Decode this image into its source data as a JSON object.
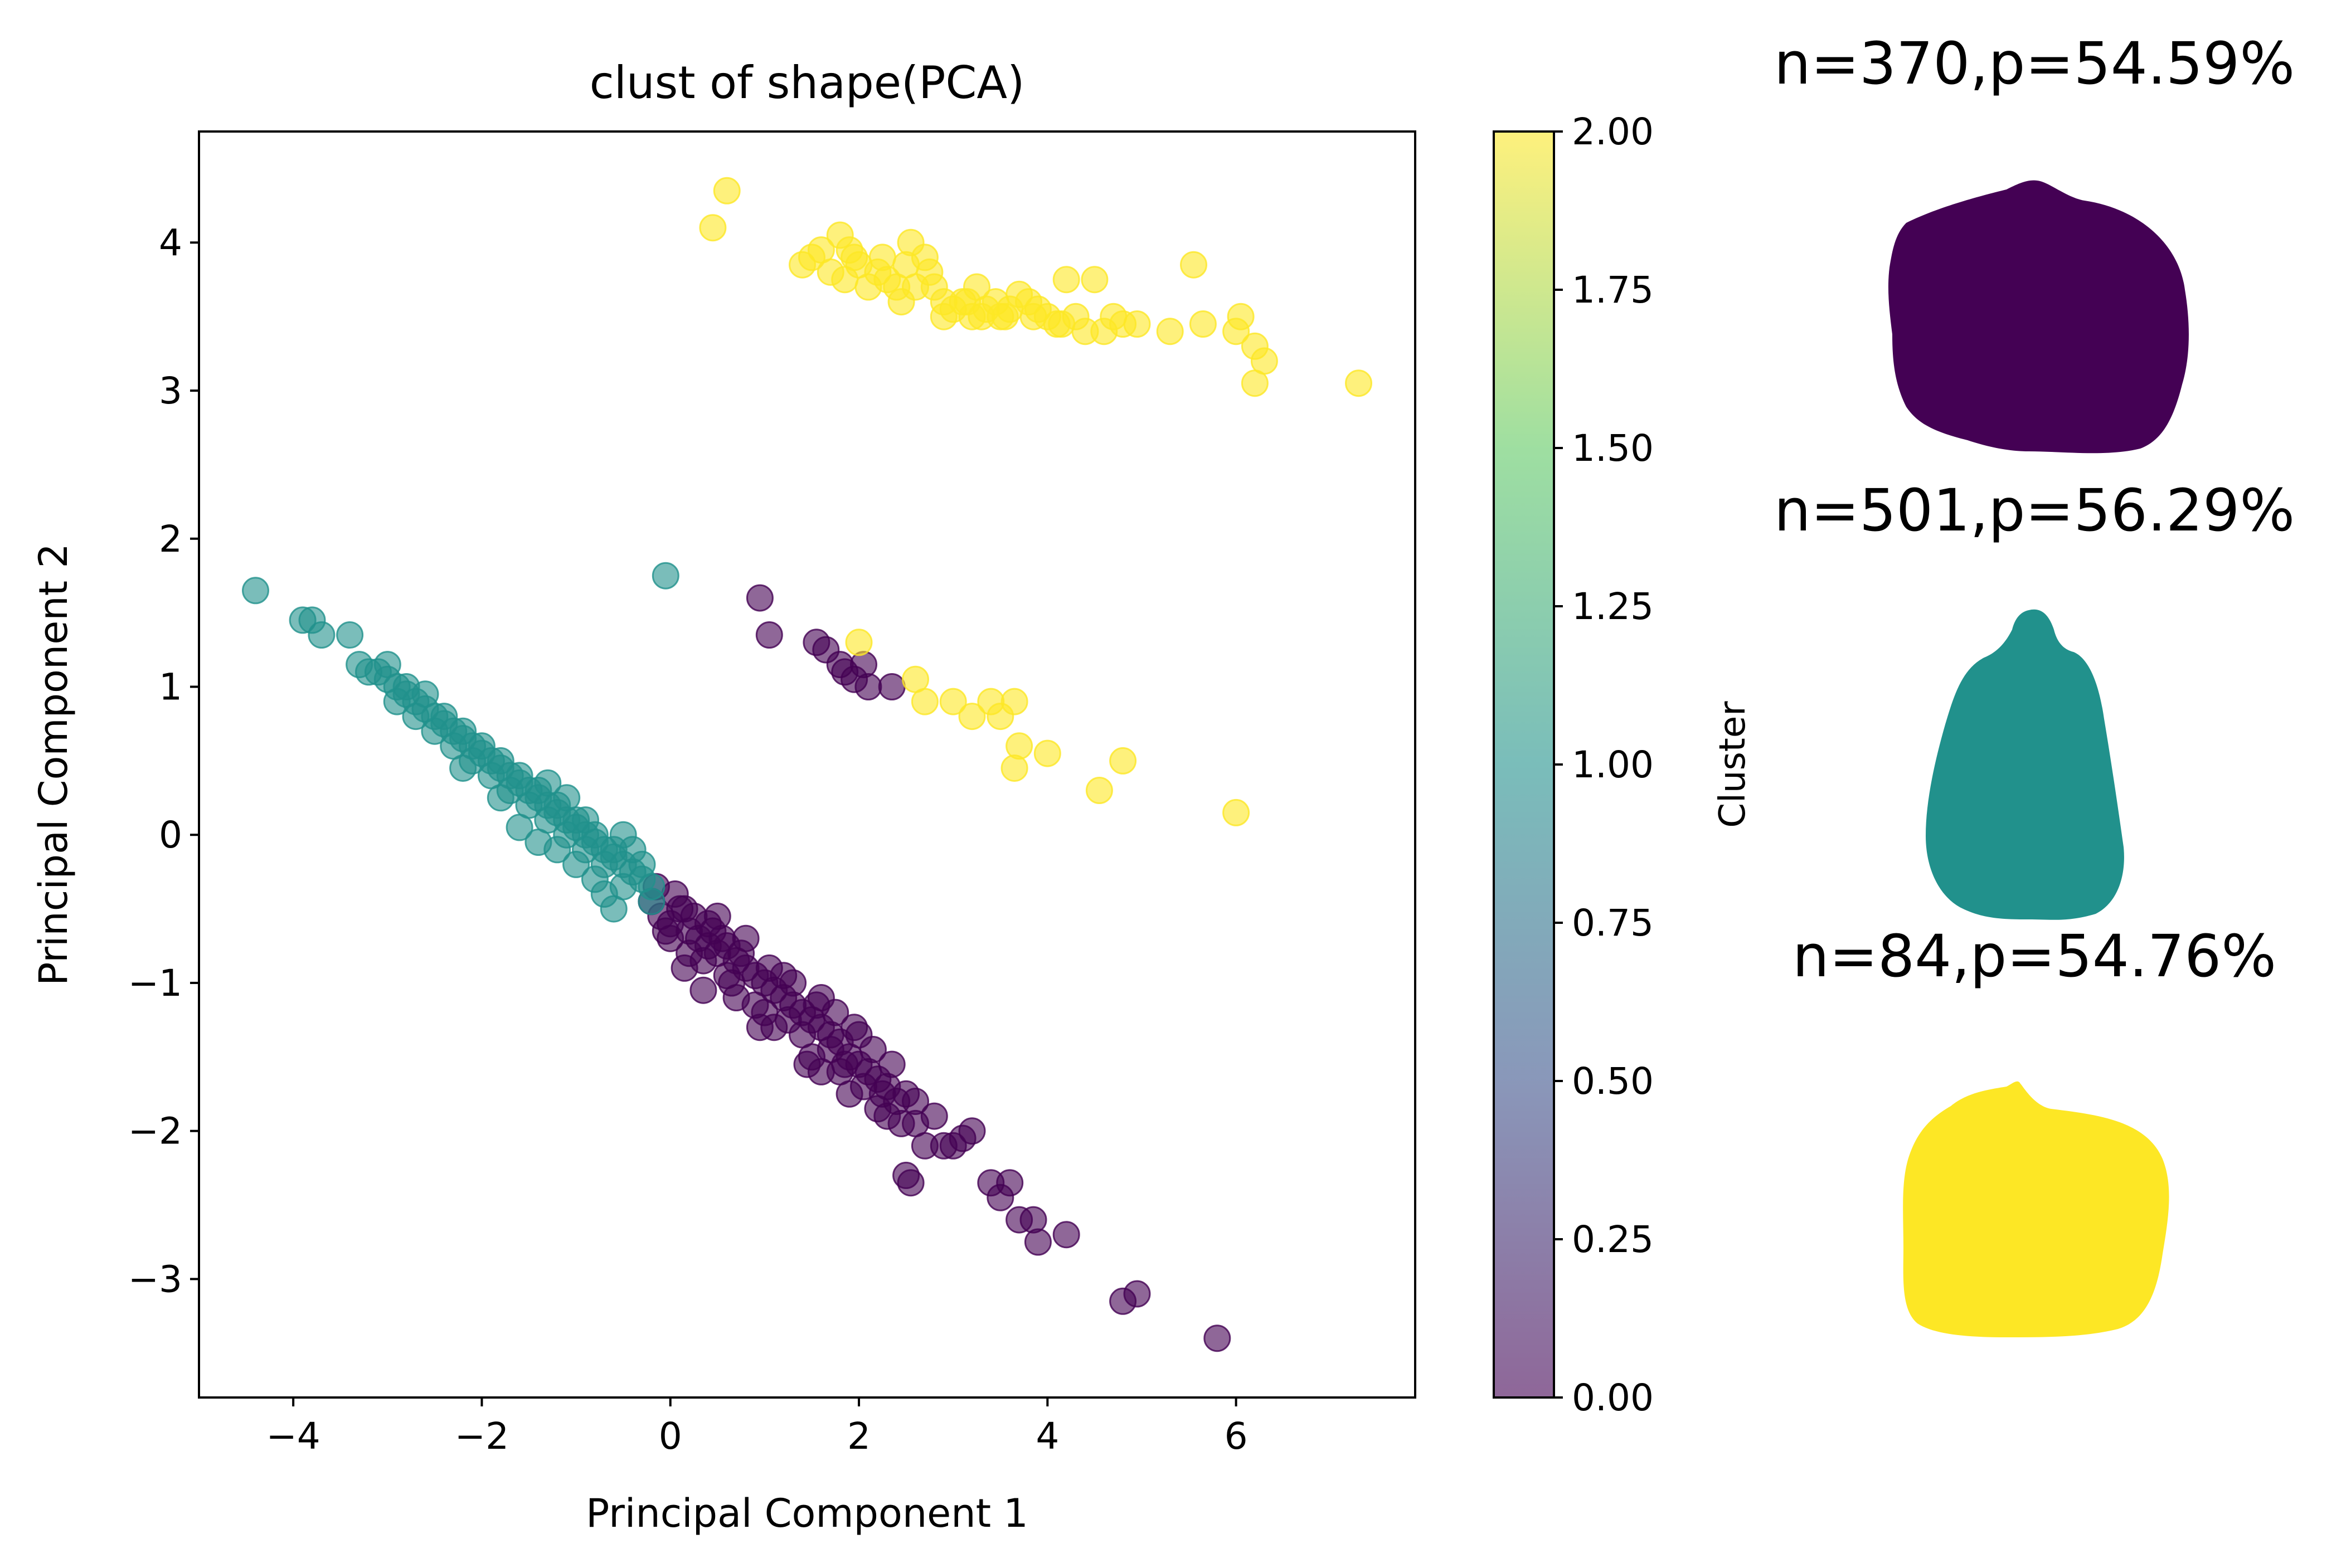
{
  "chart_data": [
    {
      "type": "scatter",
      "title": "clust of shape(PCA)",
      "xlabel": "Principal Component 1",
      "ylabel": "Principal Component 2",
      "xlim": [
        -5.0,
        7.9
      ],
      "ylim": [
        -3.8,
        4.75
      ],
      "xticks": [
        -4,
        -2,
        0,
        2,
        4,
        6
      ],
      "yticks": [
        -3,
        -2,
        -1,
        0,
        1,
        2,
        3,
        4
      ],
      "grid": false,
      "marker_alpha": 0.6,
      "colors": {
        "cluster_0": "#440154",
        "cluster_1": "#21918c",
        "cluster_2": "#fde725"
      },
      "series": [
        {
          "cluster": 0,
          "points": [
            [
              -0.2,
              -0.45
            ],
            [
              -0.1,
              -0.55
            ],
            [
              0.0,
              -0.6
            ],
            [
              0.1,
              -0.5
            ],
            [
              0.2,
              -0.65
            ],
            [
              0.3,
              -0.7
            ],
            [
              0.4,
              -0.75
            ],
            [
              0.5,
              -0.8
            ],
            [
              0.6,
              -0.75
            ],
            [
              0.7,
              -0.85
            ],
            [
              0.8,
              -0.9
            ],
            [
              0.9,
              -0.95
            ],
            [
              1.0,
              -1.0
            ],
            [
              1.1,
              -1.05
            ],
            [
              1.2,
              -1.1
            ],
            [
              1.3,
              -1.15
            ],
            [
              1.4,
              -1.2
            ],
            [
              1.5,
              -1.25
            ],
            [
              1.6,
              -1.3
            ],
            [
              1.7,
              -1.35
            ],
            [
              1.8,
              -1.4
            ],
            [
              1.9,
              -1.5
            ],
            [
              2.0,
              -1.55
            ],
            [
              2.1,
              -1.6
            ],
            [
              2.2,
              -1.65
            ],
            [
              2.3,
              -1.7
            ],
            [
              2.4,
              -1.8
            ],
            [
              2.5,
              -1.75
            ],
            [
              0.0,
              -0.7
            ],
            [
              0.2,
              -0.8
            ],
            [
              0.4,
              -0.6
            ],
            [
              0.6,
              -0.95
            ],
            [
              0.8,
              -0.7
            ],
            [
              1.0,
              -1.2
            ],
            [
              1.2,
              -0.95
            ],
            [
              1.4,
              -1.35
            ],
            [
              1.6,
              -1.1
            ],
            [
              1.8,
              -1.6
            ],
            [
              2.0,
              -1.35
            ],
            [
              2.2,
              -1.85
            ],
            [
              0.35,
              -1.05
            ],
            [
              0.7,
              -1.1
            ],
            [
              1.5,
              -1.5
            ],
            [
              1.9,
              -1.75
            ],
            [
              2.3,
              -1.9
            ],
            [
              2.6,
              -1.95
            ],
            [
              2.8,
              -1.9
            ],
            [
              3.1,
              -2.05
            ],
            [
              2.7,
              -2.1
            ],
            [
              2.5,
              -2.3
            ],
            [
              3.0,
              -2.1
            ],
            [
              3.2,
              -2.0
            ],
            [
              2.9,
              -2.1
            ],
            [
              2.55,
              -2.35
            ],
            [
              3.4,
              -2.35
            ],
            [
              3.6,
              -2.35
            ],
            [
              3.5,
              -2.45
            ],
            [
              3.7,
              -2.6
            ],
            [
              3.85,
              -2.6
            ],
            [
              3.9,
              -2.75
            ],
            [
              4.2,
              -2.7
            ],
            [
              4.8,
              -3.15
            ],
            [
              4.95,
              -3.1
            ],
            [
              5.8,
              -3.4
            ],
            [
              -0.15,
              -0.35
            ],
            [
              0.05,
              -0.4
            ],
            [
              0.15,
              -0.5
            ],
            [
              0.25,
              -0.55
            ],
            [
              0.45,
              -0.65
            ],
            [
              0.55,
              -0.7
            ],
            [
              0.9,
              -1.15
            ],
            [
              1.1,
              -1.3
            ],
            [
              1.3,
              -1.0
            ],
            [
              1.7,
              -1.45
            ],
            [
              2.05,
              -1.7
            ],
            [
              1.75,
              -1.2
            ],
            [
              1.45,
              -1.55
            ],
            [
              0.95,
              -1.3
            ],
            [
              1.05,
              -0.9
            ],
            [
              0.75,
              -0.8
            ],
            [
              0.15,
              -0.9
            ],
            [
              0.5,
              -0.55
            ],
            [
              1.85,
              -1.55
            ],
            [
              2.15,
              -1.45
            ],
            [
              2.35,
              -1.55
            ],
            [
              2.45,
              -1.95
            ],
            [
              1.6,
              -1.6
            ],
            [
              1.25,
              -1.25
            ],
            [
              0.65,
              -1.0
            ],
            [
              0.35,
              -0.85
            ],
            [
              -0.05,
              -0.65
            ],
            [
              1.55,
              -1.15
            ],
            [
              1.95,
              -1.3
            ],
            [
              2.25,
              -1.75
            ],
            [
              2.6,
              -1.8
            ],
            [
              1.55,
              1.3
            ],
            [
              1.8,
              1.15
            ],
            [
              1.95,
              1.05
            ],
            [
              2.05,
              1.15
            ],
            [
              2.1,
              1.0
            ],
            [
              2.35,
              1.0
            ],
            [
              0.95,
              1.6
            ],
            [
              1.05,
              1.35
            ],
            [
              1.65,
              1.25
            ],
            [
              1.85,
              1.1
            ]
          ]
        },
        {
          "cluster": 1,
          "points": [
            [
              -4.4,
              1.65
            ],
            [
              -3.9,
              1.45
            ],
            [
              -3.8,
              1.45
            ],
            [
              -3.7,
              1.35
            ],
            [
              -3.4,
              1.35
            ],
            [
              -3.3,
              1.15
            ],
            [
              -3.2,
              1.1
            ],
            [
              -3.1,
              1.1
            ],
            [
              -3.0,
              1.05
            ],
            [
              -2.9,
              1.0
            ],
            [
              -2.8,
              0.95
            ],
            [
              -2.7,
              0.9
            ],
            [
              -2.6,
              0.85
            ],
            [
              -2.5,
              0.8
            ],
            [
              -2.4,
              0.75
            ],
            [
              -2.3,
              0.7
            ],
            [
              -2.2,
              0.65
            ],
            [
              -2.1,
              0.6
            ],
            [
              -2.0,
              0.55
            ],
            [
              -1.9,
              0.5
            ],
            [
              -1.8,
              0.45
            ],
            [
              -1.7,
              0.4
            ],
            [
              -1.6,
              0.35
            ],
            [
              -1.5,
              0.3
            ],
            [
              -1.4,
              0.25
            ],
            [
              -1.3,
              0.2
            ],
            [
              -1.2,
              0.15
            ],
            [
              -1.1,
              0.1
            ],
            [
              -1.0,
              0.05
            ],
            [
              -0.9,
              0.0
            ],
            [
              -0.8,
              -0.05
            ],
            [
              -0.7,
              -0.1
            ],
            [
              -0.6,
              -0.15
            ],
            [
              -0.5,
              -0.2
            ],
            [
              -0.4,
              -0.25
            ],
            [
              -0.3,
              -0.3
            ],
            [
              -0.2,
              -0.35
            ],
            [
              -3.0,
              1.15
            ],
            [
              -2.8,
              1.0
            ],
            [
              -2.6,
              0.95
            ],
            [
              -2.4,
              0.8
            ],
            [
              -2.2,
              0.7
            ],
            [
              -2.0,
              0.6
            ],
            [
              -1.8,
              0.5
            ],
            [
              -1.6,
              0.4
            ],
            [
              -1.4,
              0.3
            ],
            [
              -1.2,
              0.2
            ],
            [
              -1.0,
              0.1
            ],
            [
              -0.8,
              0.0
            ],
            [
              -0.6,
              -0.1
            ],
            [
              -2.9,
              0.9
            ],
            [
              -2.7,
              0.8
            ],
            [
              -2.5,
              0.7
            ],
            [
              -2.3,
              0.6
            ],
            [
              -2.1,
              0.5
            ],
            [
              -1.9,
              0.4
            ],
            [
              -1.7,
              0.3
            ],
            [
              -1.5,
              0.2
            ],
            [
              -1.3,
              0.1
            ],
            [
              -1.1,
              0.0
            ],
            [
              -0.9,
              -0.1
            ],
            [
              -0.7,
              -0.2
            ],
            [
              -1.4,
              -0.05
            ],
            [
              -1.2,
              -0.1
            ],
            [
              -1.0,
              -0.2
            ],
            [
              -0.8,
              -0.3
            ],
            [
              -0.7,
              -0.4
            ],
            [
              -0.6,
              -0.5
            ],
            [
              -0.5,
              -0.35
            ],
            [
              -0.3,
              -0.2
            ],
            [
              -0.4,
              -0.1
            ],
            [
              -1.6,
              0.05
            ],
            [
              -1.8,
              0.25
            ],
            [
              -2.2,
              0.45
            ],
            [
              -0.05,
              1.75
            ],
            [
              -1.3,
              0.35
            ],
            [
              -1.1,
              0.25
            ],
            [
              -0.9,
              0.1
            ],
            [
              -0.5,
              0.0
            ],
            [
              -0.2,
              -0.45
            ]
          ]
        },
        {
          "cluster": 2,
          "points": [
            [
              0.6,
              4.35
            ],
            [
              0.45,
              4.1
            ],
            [
              1.4,
              3.85
            ],
            [
              1.5,
              3.9
            ],
            [
              1.6,
              3.95
            ],
            [
              1.7,
              3.8
            ],
            [
              1.8,
              4.05
            ],
            [
              1.85,
              3.75
            ],
            [
              1.9,
              3.95
            ],
            [
              2.0,
              3.85
            ],
            [
              2.1,
              3.7
            ],
            [
              2.2,
              3.8
            ],
            [
              2.3,
              3.75
            ],
            [
              2.4,
              3.7
            ],
            [
              2.5,
              3.85
            ],
            [
              2.55,
              4.0
            ],
            [
              2.6,
              3.7
            ],
            [
              2.7,
              3.9
            ],
            [
              2.8,
              3.7
            ],
            [
              2.9,
              3.6
            ],
            [
              3.0,
              3.55
            ],
            [
              3.1,
              3.6
            ],
            [
              3.2,
              3.5
            ],
            [
              3.25,
              3.7
            ],
            [
              3.35,
              3.55
            ],
            [
              3.45,
              3.6
            ],
            [
              3.5,
              3.5
            ],
            [
              3.6,
              3.55
            ],
            [
              3.7,
              3.65
            ],
            [
              3.8,
              3.6
            ],
            [
              3.9,
              3.55
            ],
            [
              4.0,
              3.5
            ],
            [
              4.1,
              3.45
            ],
            [
              4.2,
              3.75
            ],
            [
              4.3,
              3.5
            ],
            [
              4.4,
              3.4
            ],
            [
              4.5,
              3.75
            ],
            [
              4.6,
              3.4
            ],
            [
              4.7,
              3.5
            ],
            [
              4.8,
              3.45
            ],
            [
              4.95,
              3.45
            ],
            [
              5.3,
              3.4
            ],
            [
              5.55,
              3.85
            ],
            [
              5.65,
              3.45
            ],
            [
              6.0,
              3.4
            ],
            [
              6.05,
              3.5
            ],
            [
              6.2,
              3.3
            ],
            [
              6.3,
              3.2
            ],
            [
              6.2,
              3.05
            ],
            [
              7.3,
              3.05
            ],
            [
              2.0,
              1.3
            ],
            [
              2.6,
              1.05
            ],
            [
              2.7,
              0.9
            ],
            [
              3.0,
              0.9
            ],
            [
              3.2,
              0.8
            ],
            [
              3.4,
              0.9
            ],
            [
              3.5,
              0.8
            ],
            [
              3.65,
              0.9
            ],
            [
              3.7,
              0.6
            ],
            [
              3.65,
              0.45
            ],
            [
              4.0,
              0.55
            ],
            [
              4.55,
              0.3
            ],
            [
              4.8,
              0.5
            ],
            [
              6.0,
              0.15
            ],
            [
              2.9,
              3.5
            ],
            [
              3.3,
              3.5
            ],
            [
              3.55,
              3.5
            ],
            [
              4.15,
              3.45
            ],
            [
              2.25,
              3.9
            ],
            [
              2.75,
              3.8
            ],
            [
              1.95,
              3.9
            ],
            [
              2.45,
              3.6
            ],
            [
              3.15,
              3.6
            ],
            [
              3.85,
              3.5
            ]
          ]
        }
      ]
    },
    {
      "type": "heatmap",
      "role": "colorbar",
      "label": "Cluster",
      "range": [
        0.0,
        2.0
      ],
      "ticks": [
        "0.00",
        "0.25",
        "0.50",
        "0.75",
        "1.00",
        "1.25",
        "1.50",
        "1.75",
        "2.00"
      ],
      "colormap": "viridis",
      "stops": [
        "#440154",
        "#3b528b",
        "#21918c",
        "#5ec962",
        "#fde725"
      ],
      "alpha": 0.6
    }
  ],
  "shapes": [
    {
      "caption": "n=370,p=54.59%",
      "color": "#440154",
      "icon": "round-blob"
    },
    {
      "caption": "n=501,p=56.29%",
      "color": "#21918c",
      "icon": "pear-blob"
    },
    {
      "caption": "n=84,p=54.76%",
      "color": "#fde725",
      "icon": "rounded-square-blob"
    }
  ]
}
